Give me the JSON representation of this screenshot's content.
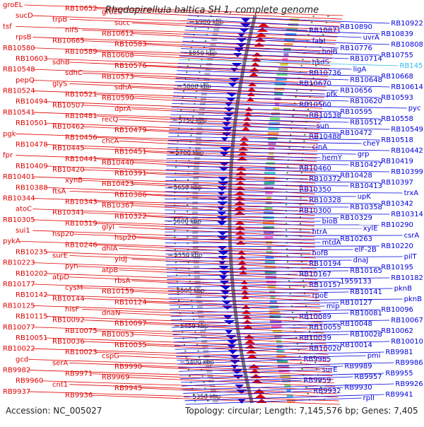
{
  "title": "Rhodopirellula baltica SH 1, complete genome",
  "accession": "Accession: NC_005027",
  "summary": "Topology: circular; Length: 7,145,576 bp; Genes: 7,405",
  "colors": {
    "forward": "#e00000",
    "reverse": "#0000dd",
    "highlight": "#33bbee",
    "backbone": "#777777",
    "tick": "#2e8b2e"
  },
  "kbp_ticks": [
    "5350 kbp",
    "5400 kbp",
    "5450 kbp",
    "5500 kbp",
    "5550 kbp",
    "5600 kbp",
    "5650 kbp",
    "5700 kbp",
    "5750 kbp",
    "5800 kbp",
    "5850 kbp",
    "5900 kbp"
  ],
  "left_labels": [
    "groEL",
    "RB10652",
    "groES",
    "sucD",
    "trpB",
    "succ",
    "tsf",
    "nifS",
    "RB10612",
    "rpsB",
    "RB10665",
    "RB10583",
    "RB10580",
    "RB10589",
    "RB10608",
    "RB10603",
    "sdhB",
    "RB10576",
    "RB10548",
    "sdhC",
    "RB10573",
    "pepQ",
    "glyS",
    "sdhA",
    "RB10524",
    "RB10521",
    "RB10590",
    "RB10494",
    "RB10507",
    "dprA",
    "RB10541",
    "RB10481",
    "recQ",
    "RB10501",
    "RB10462",
    "RB10479",
    "pgk",
    "RB10456",
    "chcA",
    "RB10478",
    "RB10445",
    "RB10451",
    "fpr",
    "RB10441",
    "RB10440",
    "RB10409",
    "RB10420",
    "RB10391",
    "RB10401",
    "xynB",
    "RB10423",
    "RB10388",
    "ftsA",
    "RB10386",
    "RB10344",
    "RB10343",
    "RB10367",
    "atoC",
    "RB10341",
    "RB10322",
    "RB10305",
    "RB10319",
    "glyl",
    "sui1",
    "hsp20",
    "hsp20",
    "pykA",
    "RB10246",
    "dhlA",
    "RB10235",
    "surE",
    "yidJ",
    "RB10223",
    "pyn",
    "atpB",
    "RB10202",
    "atpD",
    "rbsA",
    "RB10177",
    "cysM",
    "RB10159",
    "RB10142",
    "RB10144",
    "RB10124",
    "RB10125",
    "hisF",
    "dnaN",
    "RB10115",
    "RB10092",
    "RB10097",
    "RB10077",
    "RB10075",
    "RB10053",
    "RB10051",
    "RB10036",
    "RB10035",
    "RB10022",
    "RB10023",
    "cspG",
    "gcd",
    "serA",
    "RB9990",
    "RB9982",
    "RB9971",
    "RB9969",
    "RB9960",
    "cnt1",
    "RB9945",
    "RB9937",
    "RB9936"
  ],
  "right_labels": [
    "RB10922",
    "RB10890",
    "RB10871",
    "RB10839",
    "uvrA",
    "fabI",
    "RB10808",
    "RB10776",
    "holB",
    "RB10755",
    "RB10714",
    "hsdS",
    "RB145",
    "ligA",
    "RB10736",
    "RB10668",
    "RB10648",
    "RB10670",
    "RB10614",
    "RB10656",
    "pfk",
    "RB10593",
    "RB10620",
    "RB10560",
    "pyc",
    "RB10595",
    "RB10538",
    "RB10558",
    "RB10512",
    "sun",
    "RB10549",
    "RB10472",
    "RB10488",
    "RB10518",
    "cheY",
    "cinA",
    "RB10442",
    "grp",
    "hemY",
    "RB10419",
    "RB10427",
    "RB10460",
    "RB10399",
    "RB10428",
    "RB10372",
    "RB10397",
    "RB10413",
    "RB10350",
    "trxA",
    "upK",
    "RB10328",
    "RB10342",
    "RB10358",
    "RB10300",
    "RB10314",
    "RB10329",
    "bioB",
    "RB10290",
    "xylE",
    "htrA",
    "csrA",
    "RB10263",
    "mtdA",
    "RB10220",
    "elF-2B",
    "hofB",
    "pilT",
    "dnaJ",
    "RB10194",
    "RB10195",
    "RB10165",
    "RB10167",
    "RB10182",
    "1959133",
    "RB10157",
    "pknB",
    "RB10141",
    "rpoE",
    "pknB",
    "RB10127",
    "mip",
    "RB10096",
    "RB10081",
    "RB10089",
    "RB10067",
    "RB10048",
    "RB10055",
    "RB10062",
    "RB10028",
    "RB10039",
    "RB10010",
    "RB10014",
    "RB10020",
    "RB9981",
    "pmi",
    "RB9985",
    "RB9986",
    "RB9989",
    "surE",
    "RB9955",
    "RB9957",
    "RB9959",
    "RB9926",
    "RB9930",
    "RB9932",
    "RB9941",
    "rplI"
  ]
}
